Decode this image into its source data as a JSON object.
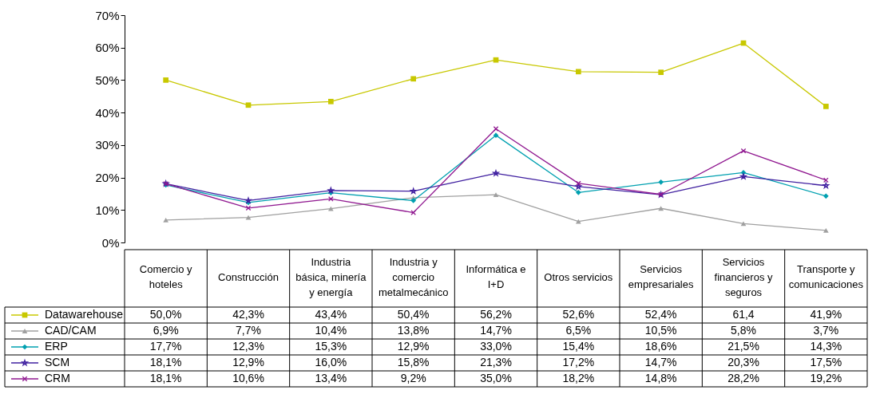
{
  "chart_data": {
    "type": "line",
    "categories": [
      "Comercio y hoteles",
      "Construcción",
      "Industria básica, minería y energía",
      "Industria y comercio metalmecánico",
      "Informática e I+D",
      "Otros servicios",
      "Servicios empresariales",
      "Servicios financieros y seguros",
      "Transporte y comunicaciones"
    ],
    "series": [
      {
        "name": "Datawarehouse",
        "color": "#c8c800",
        "marker": "square",
        "values": [
          50.0,
          42.3,
          43.4,
          50.4,
          56.2,
          52.6,
          52.4,
          61.4,
          41.9
        ],
        "value_labels": [
          "50,0%",
          "42,3%",
          "43,4%",
          "50,4%",
          "56,2%",
          "52,6%",
          "52,4%",
          "61,4",
          "41,9%"
        ]
      },
      {
        "name": "CAD/CAM",
        "color": "#a0a0a0",
        "marker": "triangle",
        "values": [
          6.9,
          7.7,
          10.4,
          13.8,
          14.7,
          6.5,
          10.5,
          5.8,
          3.7
        ],
        "value_labels": [
          "6,9%",
          "7,7%",
          "10,4%",
          "13,8%",
          "14,7%",
          "6,5%",
          "10,5%",
          "5,8%",
          "3,7%"
        ]
      },
      {
        "name": "ERP",
        "color": "#00a0b0",
        "marker": "diamond",
        "values": [
          17.7,
          12.3,
          15.3,
          12.9,
          33.0,
          15.4,
          18.6,
          21.5,
          14.3
        ],
        "value_labels": [
          "17,7%",
          "12,3%",
          "15,3%",
          "12,9%",
          "33,0%",
          "15,4%",
          "18,6%",
          "21,5%",
          "14,3%"
        ]
      },
      {
        "name": "SCM",
        "color": "#4020a0",
        "marker": "star",
        "values": [
          18.1,
          12.9,
          16.0,
          15.8,
          21.3,
          17.2,
          14.7,
          20.3,
          17.5
        ],
        "value_labels": [
          "18,1%",
          "12,9%",
          "16,0%",
          "15,8%",
          "21,3%",
          "17,2%",
          "14,7%",
          "20,3%",
          "17,5%"
        ]
      },
      {
        "name": "CRM",
        "color": "#901890",
        "marker": "cross",
        "values": [
          18.1,
          10.6,
          13.4,
          9.2,
          35.0,
          18.2,
          14.8,
          28.2,
          19.2
        ],
        "value_labels": [
          "18,1%",
          "10,6%",
          "13,4%",
          "9,2%",
          "35,0%",
          "18,2%",
          "14,8%",
          "28,2%",
          "19,2%"
        ]
      }
    ],
    "ylim": [
      0,
      70
    ],
    "yticks": [
      {
        "value": 0,
        "label": "0%"
      },
      {
        "value": 10,
        "label": "10%"
      },
      {
        "value": 20,
        "label": "20%"
      },
      {
        "value": 30,
        "label": "30%"
      },
      {
        "value": 40,
        "label": "40%"
      },
      {
        "value": 50,
        "label": "50%"
      },
      {
        "value": 60,
        "label": "60%"
      },
      {
        "value": 70,
        "label": "70%"
      }
    ],
    "grid": false,
    "legend": "bottom left",
    "line_style": "solid"
  }
}
